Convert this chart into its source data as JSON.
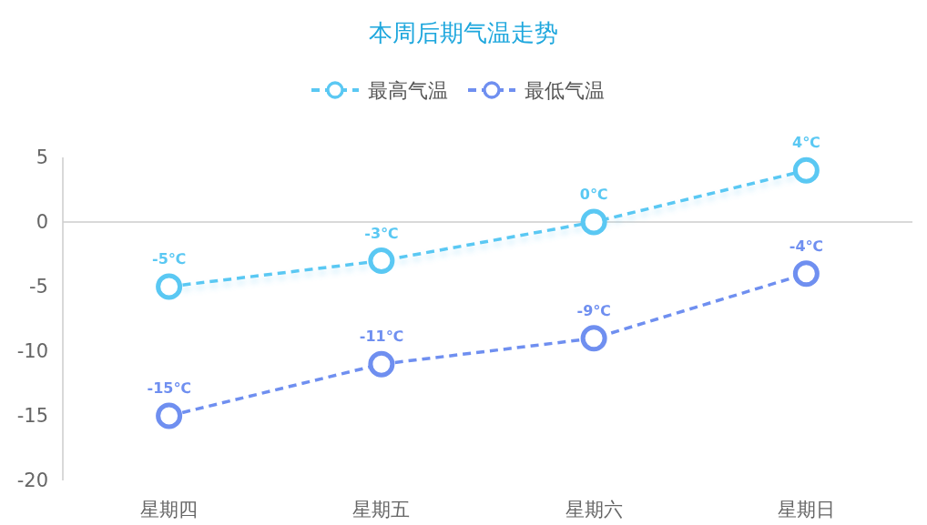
{
  "chart_data": {
    "type": "line",
    "title": "本周后期气温走势",
    "categories": [
      "星期四",
      "星期五",
      "星期六",
      "星期日"
    ],
    "series": [
      {
        "name": "最高气温",
        "color": "#5ac8f3",
        "values": [
          -5,
          -3,
          0,
          4
        ],
        "value_labels": [
          "-5℃",
          "-3℃",
          "0℃",
          "4℃"
        ]
      },
      {
        "name": "最低气温",
        "color": "#6f8ff0",
        "values": [
          -15,
          -11,
          -9,
          -4
        ],
        "value_labels": [
          "-15℃",
          "-11℃",
          "-9℃",
          "-4℃"
        ]
      }
    ],
    "ylim": [
      -20,
      5
    ],
    "yticks": [
      5,
      0,
      -5,
      -10,
      -15,
      -20
    ],
    "legend": "top",
    "marker": "circle",
    "line_style": "dashed"
  }
}
